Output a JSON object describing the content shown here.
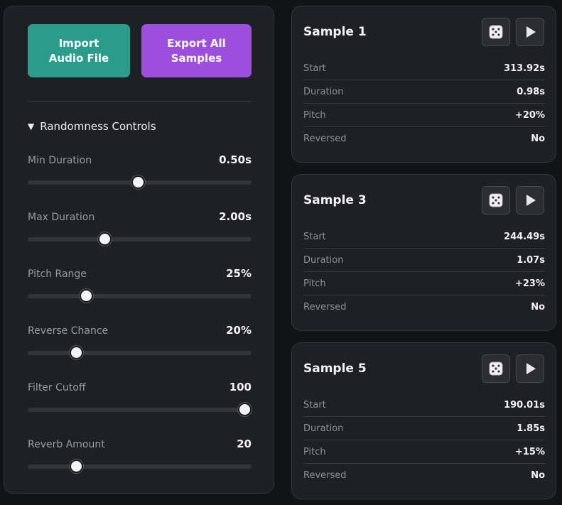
{
  "buttons": {
    "import_label": "Import\nAudio File",
    "export_label": "Export All\nSamples"
  },
  "colors": {
    "import": "#2a9c8b",
    "export": "#9b4fdc"
  },
  "randomness": {
    "heading": "Randomness Controls",
    "controls": [
      {
        "label": "Min Duration",
        "value": "0.50s",
        "fraction": 0.495
      },
      {
        "label": "Max Duration",
        "value": "2.00s",
        "fraction": 0.343
      },
      {
        "label": "Pitch Range",
        "value": "25%",
        "fraction": 0.263
      },
      {
        "label": "Reverse Chance",
        "value": "20%",
        "fraction": 0.219
      },
      {
        "label": "Filter Cutoff",
        "value": "100",
        "fraction": 0.97
      },
      {
        "label": "Reverb Amount",
        "value": "20",
        "fraction": 0.219
      }
    ]
  },
  "samples": [
    {
      "title": "Sample 1",
      "rows": [
        {
          "key": "Start",
          "value": "313.92s"
        },
        {
          "key": "Duration",
          "value": "0.98s"
        },
        {
          "key": "Pitch",
          "value": "+20%"
        },
        {
          "key": "Reversed",
          "value": "No"
        }
      ]
    },
    {
      "title": "Sample 3",
      "rows": [
        {
          "key": "Start",
          "value": "244.49s"
        },
        {
          "key": "Duration",
          "value": "1.07s"
        },
        {
          "key": "Pitch",
          "value": "+23%"
        },
        {
          "key": "Reversed",
          "value": "No"
        }
      ]
    },
    {
      "title": "Sample 5",
      "rows": [
        {
          "key": "Start",
          "value": "190.01s"
        },
        {
          "key": "Duration",
          "value": "1.85s"
        },
        {
          "key": "Pitch",
          "value": "+15%"
        },
        {
          "key": "Reversed",
          "value": "No"
        }
      ]
    }
  ]
}
